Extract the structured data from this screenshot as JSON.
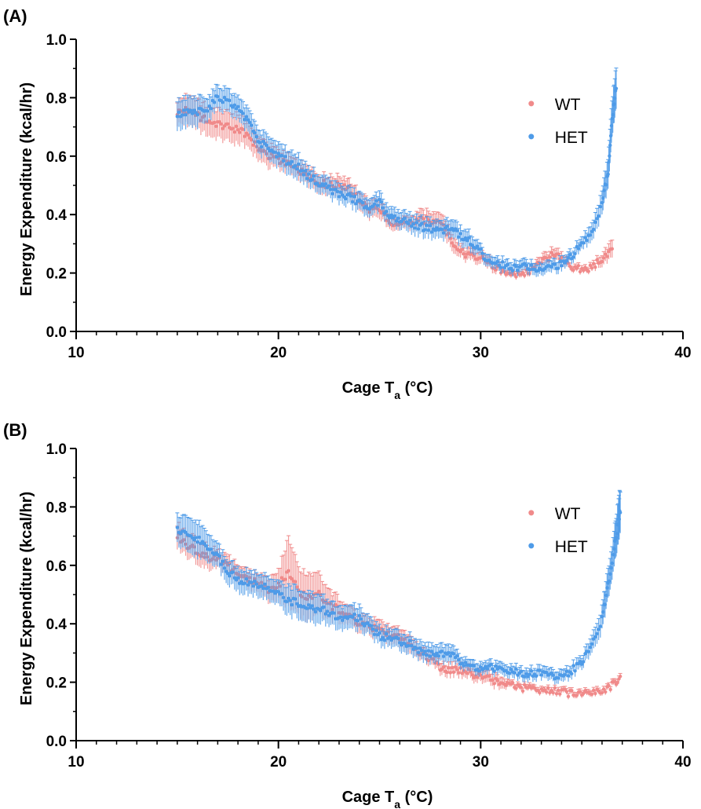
{
  "chart_data": [
    {
      "panel": "(A)",
      "type": "scatter",
      "xlabel": "Cage T",
      "xlabel_sub": "a",
      "xlabel_unit": " (°C)",
      "ylabel": "Energy  Expenditure (kcal/hr)",
      "xlim": [
        10,
        40
      ],
      "ylim": [
        0.0,
        1.0
      ],
      "x_ticks": [
        10,
        20,
        30,
        40
      ],
      "y_ticks": [
        "0.0",
        "0.2",
        "0.4",
        "0.6",
        "0.8",
        "1.0"
      ],
      "grid": false,
      "legend_position": "top-right",
      "error_bars": true,
      "series": [
        {
          "name": "WT",
          "color": "#f08a8a",
          "points": [
            [
              15,
              0.75,
              0.04
            ],
            [
              15.5,
              0.76,
              0.05
            ],
            [
              16,
              0.74,
              0.05
            ],
            [
              16.5,
              0.72,
              0.05
            ],
            [
              17,
              0.71,
              0.05
            ],
            [
              17.5,
              0.7,
              0.05
            ],
            [
              18,
              0.69,
              0.05
            ],
            [
              18.5,
              0.67,
              0.04
            ],
            [
              19,
              0.63,
              0.04
            ],
            [
              19.5,
              0.6,
              0.04
            ],
            [
              20,
              0.59,
              0.03
            ],
            [
              20.5,
              0.57,
              0.03
            ],
            [
              21,
              0.55,
              0.03
            ],
            [
              21.5,
              0.53,
              0.03
            ],
            [
              22,
              0.51,
              0.03
            ],
            [
              22.5,
              0.5,
              0.03
            ],
            [
              23,
              0.5,
              0.03
            ],
            [
              23.5,
              0.49,
              0.03
            ],
            [
              24,
              0.45,
              0.03
            ],
            [
              24.5,
              0.42,
              0.03
            ],
            [
              25,
              0.41,
              0.03
            ],
            [
              25.5,
              0.38,
              0.02
            ],
            [
              26,
              0.36,
              0.02
            ],
            [
              26.5,
              0.37,
              0.02
            ],
            [
              27,
              0.38,
              0.03
            ],
            [
              27.5,
              0.38,
              0.03
            ],
            [
              28,
              0.38,
              0.03
            ],
            [
              28.5,
              0.32,
              0.03
            ],
            [
              29,
              0.27,
              0.02
            ],
            [
              29.5,
              0.26,
              0.02
            ],
            [
              30,
              0.25,
              0.02
            ],
            [
              30.5,
              0.23,
              0.02
            ],
            [
              31,
              0.21,
              0.01
            ],
            [
              31.5,
              0.2,
              0.01
            ],
            [
              32,
              0.19,
              0.01
            ],
            [
              32.5,
              0.21,
              0.01
            ],
            [
              33,
              0.24,
              0.02
            ],
            [
              33.5,
              0.26,
              0.02
            ],
            [
              34,
              0.25,
              0.02
            ],
            [
              34.5,
              0.22,
              0.01
            ],
            [
              35,
              0.21,
              0.01
            ],
            [
              35.5,
              0.22,
              0.01
            ],
            [
              36,
              0.25,
              0.02
            ],
            [
              36.5,
              0.28,
              0.03
            ]
          ]
        },
        {
          "name": "HET",
          "color": "#4e9be8",
          "points": [
            [
              15,
              0.74,
              0.05
            ],
            [
              15.5,
              0.75,
              0.05
            ],
            [
              16,
              0.75,
              0.05
            ],
            [
              16.5,
              0.76,
              0.04
            ],
            [
              17,
              0.8,
              0.04
            ],
            [
              17.5,
              0.79,
              0.04
            ],
            [
              18,
              0.76,
              0.04
            ],
            [
              18.5,
              0.72,
              0.04
            ],
            [
              19,
              0.65,
              0.04
            ],
            [
              19.5,
              0.63,
              0.04
            ],
            [
              20,
              0.6,
              0.04
            ],
            [
              20.5,
              0.58,
              0.04
            ],
            [
              21,
              0.56,
              0.04
            ],
            [
              21.5,
              0.53,
              0.03
            ],
            [
              22,
              0.51,
              0.03
            ],
            [
              22.5,
              0.49,
              0.03
            ],
            [
              23,
              0.47,
              0.03
            ],
            [
              23.5,
              0.46,
              0.03
            ],
            [
              24,
              0.44,
              0.03
            ],
            [
              24.5,
              0.43,
              0.03
            ],
            [
              25,
              0.44,
              0.03
            ],
            [
              25.5,
              0.39,
              0.03
            ],
            [
              26,
              0.38,
              0.03
            ],
            [
              26.5,
              0.37,
              0.03
            ],
            [
              27,
              0.36,
              0.03
            ],
            [
              27.5,
              0.35,
              0.03
            ],
            [
              28,
              0.34,
              0.03
            ],
            [
              28.5,
              0.36,
              0.03
            ],
            [
              29,
              0.33,
              0.03
            ],
            [
              29.5,
              0.31,
              0.03
            ],
            [
              30,
              0.27,
              0.02
            ],
            [
              30.5,
              0.24,
              0.02
            ],
            [
              31,
              0.23,
              0.02
            ],
            [
              31.5,
              0.22,
              0.02
            ],
            [
              32,
              0.22,
              0.02
            ],
            [
              32.5,
              0.22,
              0.02
            ],
            [
              33,
              0.21,
              0.02
            ],
            [
              33.5,
              0.22,
              0.02
            ],
            [
              34,
              0.23,
              0.02
            ],
            [
              34.5,
              0.26,
              0.02
            ],
            [
              35,
              0.3,
              0.02
            ],
            [
              35.5,
              0.34,
              0.03
            ],
            [
              36,
              0.44,
              0.04
            ],
            [
              36.3,
              0.55,
              0.05
            ],
            [
              36.5,
              0.73,
              0.06
            ],
            [
              36.7,
              0.84,
              0.07
            ]
          ]
        }
      ]
    },
    {
      "panel": "(B)",
      "type": "scatter",
      "xlabel": "Cage T",
      "xlabel_sub": "a",
      "xlabel_unit": " (°C)",
      "ylabel": "Energy  Expenditure (kcal/hr)",
      "xlim": [
        10,
        40
      ],
      "ylim": [
        0.0,
        1.0
      ],
      "x_ticks": [
        10,
        20,
        30,
        40
      ],
      "y_ticks": [
        "0.0",
        "0.2",
        "0.4",
        "0.6",
        "0.8",
        "1.0"
      ],
      "grid": false,
      "legend_position": "top-right",
      "error_bars": true,
      "series": [
        {
          "name": "WT",
          "color": "#f08a8a",
          "points": [
            [
              15,
              0.7,
              0.04
            ],
            [
              15.5,
              0.67,
              0.04
            ],
            [
              16,
              0.65,
              0.04
            ],
            [
              16.5,
              0.63,
              0.04
            ],
            [
              17,
              0.62,
              0.03
            ],
            [
              17.5,
              0.6,
              0.03
            ],
            [
              18,
              0.57,
              0.03
            ],
            [
              18.5,
              0.55,
              0.03
            ],
            [
              19,
              0.54,
              0.03
            ],
            [
              19.5,
              0.52,
              0.04
            ],
            [
              20,
              0.53,
              0.05
            ],
            [
              20.5,
              0.58,
              0.12
            ],
            [
              21,
              0.51,
              0.08
            ],
            [
              21.5,
              0.49,
              0.08
            ],
            [
              22,
              0.5,
              0.07
            ],
            [
              22.5,
              0.46,
              0.05
            ],
            [
              23,
              0.45,
              0.04
            ],
            [
              23.5,
              0.43,
              0.03
            ],
            [
              24,
              0.4,
              0.03
            ],
            [
              24.5,
              0.39,
              0.03
            ],
            [
              25,
              0.38,
              0.03
            ],
            [
              25.5,
              0.36,
              0.03
            ],
            [
              26,
              0.35,
              0.03
            ],
            [
              26.5,
              0.33,
              0.03
            ],
            [
              27,
              0.3,
              0.02
            ],
            [
              27.5,
              0.28,
              0.02
            ],
            [
              28,
              0.25,
              0.02
            ],
            [
              28.5,
              0.24,
              0.02
            ],
            [
              29,
              0.24,
              0.02
            ],
            [
              29.5,
              0.23,
              0.02
            ],
            [
              30,
              0.22,
              0.02
            ],
            [
              30.5,
              0.21,
              0.02
            ],
            [
              31,
              0.2,
              0.02
            ],
            [
              31.5,
              0.19,
              0.01
            ],
            [
              32,
              0.18,
              0.01
            ],
            [
              32.5,
              0.18,
              0.01
            ],
            [
              33,
              0.17,
              0.01
            ],
            [
              33.5,
              0.17,
              0.01
            ],
            [
              34,
              0.17,
              0.01
            ],
            [
              34.5,
              0.16,
              0.01
            ],
            [
              35,
              0.16,
              0.01
            ],
            [
              35.5,
              0.17,
              0.01
            ],
            [
              36,
              0.17,
              0.01
            ],
            [
              36.5,
              0.19,
              0.01
            ],
            [
              36.9,
              0.22,
              0.01
            ]
          ]
        },
        {
          "name": "HET",
          "color": "#4e9be8",
          "points": [
            [
              15,
              0.72,
              0.05
            ],
            [
              15.5,
              0.7,
              0.06
            ],
            [
              16,
              0.69,
              0.06
            ],
            [
              16.5,
              0.66,
              0.05
            ],
            [
              17,
              0.63,
              0.04
            ],
            [
              17.5,
              0.58,
              0.04
            ],
            [
              18,
              0.55,
              0.04
            ],
            [
              18.5,
              0.54,
              0.04
            ],
            [
              19,
              0.53,
              0.04
            ],
            [
              19.5,
              0.52,
              0.04
            ],
            [
              20,
              0.5,
              0.04
            ],
            [
              20.5,
              0.48,
              0.05
            ],
            [
              21,
              0.47,
              0.05
            ],
            [
              21.5,
              0.46,
              0.05
            ],
            [
              22,
              0.45,
              0.05
            ],
            [
              22.5,
              0.44,
              0.04
            ],
            [
              23,
              0.42,
              0.04
            ],
            [
              23.5,
              0.42,
              0.04
            ],
            [
              24,
              0.42,
              0.04
            ],
            [
              24.5,
              0.39,
              0.03
            ],
            [
              25,
              0.36,
              0.03
            ],
            [
              25.5,
              0.35,
              0.03
            ],
            [
              26,
              0.34,
              0.03
            ],
            [
              26.5,
              0.33,
              0.03
            ],
            [
              27,
              0.31,
              0.03
            ],
            [
              27.5,
              0.3,
              0.03
            ],
            [
              28,
              0.3,
              0.03
            ],
            [
              28.5,
              0.3,
              0.03
            ],
            [
              29,
              0.27,
              0.02
            ],
            [
              29.5,
              0.25,
              0.02
            ],
            [
              30,
              0.24,
              0.02
            ],
            [
              30.5,
              0.25,
              0.02
            ],
            [
              31,
              0.24,
              0.02
            ],
            [
              31.5,
              0.24,
              0.02
            ],
            [
              32,
              0.23,
              0.02
            ],
            [
              32.5,
              0.23,
              0.02
            ],
            [
              33,
              0.23,
              0.02
            ],
            [
              33.5,
              0.22,
              0.02
            ],
            [
              34,
              0.22,
              0.02
            ],
            [
              34.5,
              0.24,
              0.02
            ],
            [
              35,
              0.27,
              0.02
            ],
            [
              35.5,
              0.32,
              0.03
            ],
            [
              36,
              0.42,
              0.04
            ],
            [
              36.3,
              0.53,
              0.05
            ],
            [
              36.6,
              0.66,
              0.06
            ],
            [
              36.8,
              0.75,
              0.07
            ],
            [
              36.9,
              0.79,
              0.07
            ]
          ]
        }
      ]
    }
  ]
}
